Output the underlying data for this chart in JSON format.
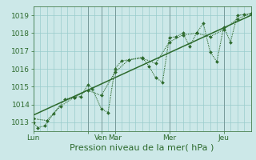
{
  "xlabel": "Pression niveau de la mer( hPa )",
  "bg_color": "#cce8e8",
  "grid_color": "#99cccc",
  "line_color": "#2d6a2d",
  "ylim": [
    1012.5,
    1019.5
  ],
  "xlim": [
    0,
    96
  ],
  "yticks": [
    1013,
    1014,
    1015,
    1016,
    1017,
    1018,
    1019
  ],
  "xtick_positions": [
    0,
    24,
    30,
    36,
    60,
    84
  ],
  "xtick_labels": [
    "Lun",
    "",
    "Ven",
    "Mar",
    "Mer",
    "Jeu"
  ],
  "vline_positions": [
    24,
    30,
    36,
    60,
    84
  ],
  "series1_x": [
    0,
    2,
    5,
    9,
    14,
    18,
    21,
    24,
    26,
    30,
    33,
    36,
    39,
    42,
    48,
    51,
    54,
    57,
    60,
    63,
    66,
    69,
    72,
    75,
    78,
    81,
    84,
    87,
    90,
    93,
    96
  ],
  "series1_y": [
    1013.0,
    1012.7,
    1012.8,
    1013.5,
    1014.3,
    1014.4,
    1014.45,
    1015.1,
    1014.9,
    1013.75,
    1013.55,
    1016.0,
    1016.45,
    1016.5,
    1016.65,
    1016.15,
    1015.5,
    1015.25,
    1017.75,
    1017.8,
    1018.0,
    1017.25,
    1018.0,
    1018.55,
    1016.95,
    1016.4,
    1018.35,
    1017.5,
    1019.0,
    1019.05,
    1019.1
  ],
  "series2_x": [
    0,
    6,
    12,
    18,
    24,
    30,
    36,
    42,
    48,
    54,
    60,
    66,
    72,
    78,
    84,
    90,
    96
  ],
  "series2_y": [
    1013.2,
    1013.1,
    1013.9,
    1014.4,
    1014.8,
    1014.5,
    1015.8,
    1016.5,
    1016.6,
    1016.3,
    1017.5,
    1017.9,
    1018.0,
    1017.8,
    1018.2,
    1018.8,
    1019.1
  ],
  "trend_x": [
    0,
    96
  ],
  "trend_y": [
    1013.4,
    1019.0
  ],
  "fontsize_label": 8,
  "fontsize_tick": 6.5,
  "marker": "D",
  "marker_size": 2.0,
  "linewidth": 0.8,
  "trend_linewidth": 1.1
}
